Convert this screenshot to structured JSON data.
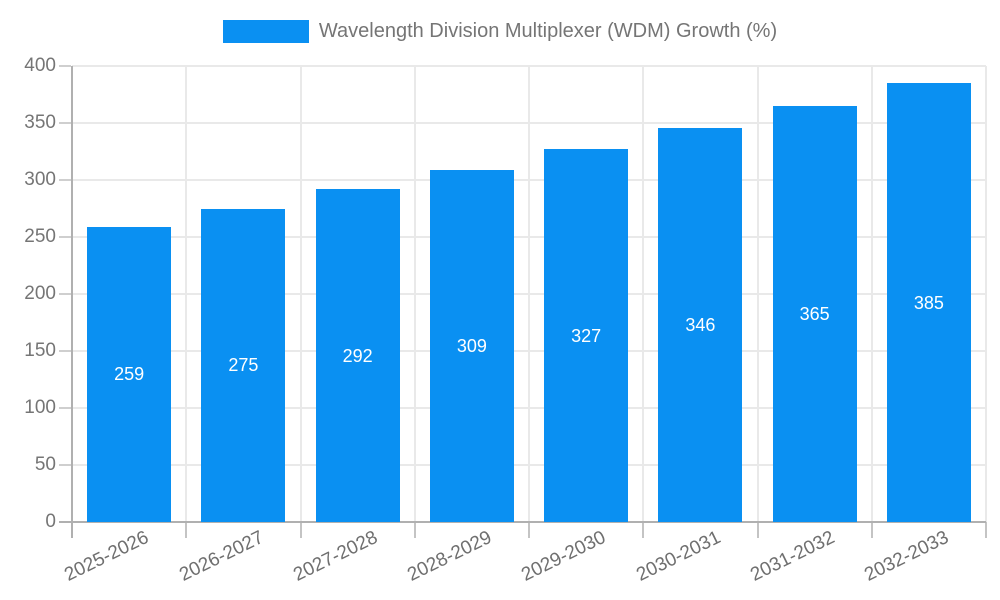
{
  "chart_data": {
    "type": "bar",
    "title": "Wavelength Division Multiplexer (WDM) Growth (%)",
    "categories": [
      "2025-2026",
      "2026-2027",
      "2027-2028",
      "2028-2029",
      "2029-2030",
      "2030-2031",
      "2031-2032",
      "2032-2033"
    ],
    "series": [
      {
        "name": "Wavelength Division Multiplexer (WDM) Growth (%)",
        "values": [
          259,
          275,
          292,
          309,
          327,
          346,
          365,
          385
        ],
        "color": "#0a90f2"
      }
    ],
    "value_labels": [
      "259",
      "275",
      "292",
      "309",
      "327",
      "346",
      "365",
      "385"
    ],
    "value_label_color": "#ffffff",
    "xlabel": "",
    "ylabel": "",
    "ylim": [
      0,
      400
    ],
    "y_ticks": [
      0,
      50,
      100,
      150,
      200,
      250,
      300,
      350,
      400
    ],
    "grid": true,
    "legend_position": "top",
    "x_tick_rotation_deg": -26,
    "colors": {
      "bar": "#0a90f2",
      "axis_line": "#b0b0b0",
      "gridline": "#e9e9e9",
      "axis_text": "#757575",
      "legend_text": "#757575",
      "background": "#ffffff"
    }
  }
}
